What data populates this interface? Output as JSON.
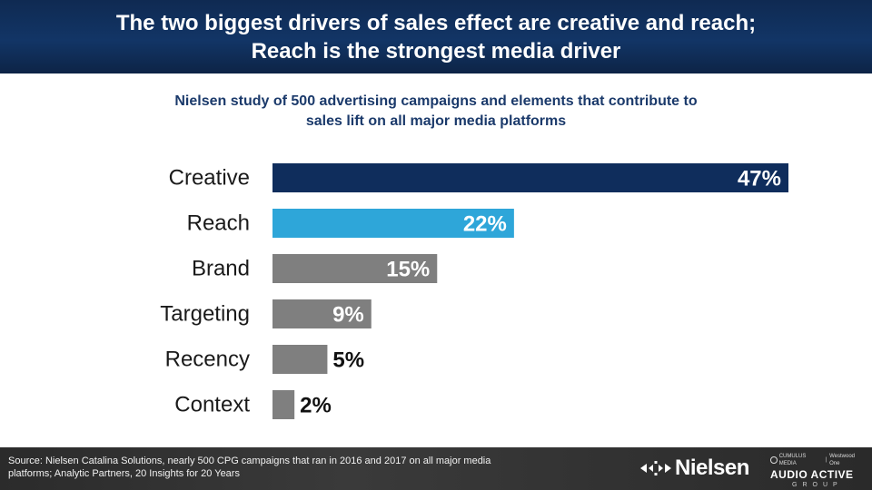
{
  "header": {
    "title_line1": "The two biggest drivers of sales effect are creative and reach;",
    "title_line2": "Reach is the strongest media driver"
  },
  "subtitle": {
    "line1": "Nielsen study of 500 advertising campaigns and elements that contribute to",
    "line2": "sales lift on all major media platforms"
  },
  "chart_data": {
    "type": "bar",
    "orientation": "horizontal",
    "categories": [
      "Creative",
      "Reach",
      "Brand",
      "Targeting",
      "Recency",
      "Context"
    ],
    "values": [
      47,
      22,
      15,
      9,
      5,
      2
    ],
    "value_labels": [
      "47%",
      "22%",
      "15%",
      "9%",
      "5%",
      "2%"
    ],
    "unit": "%",
    "xlim": [
      0,
      47
    ],
    "grid": false,
    "legend": "none",
    "colors": [
      "#0f2d5c",
      "#2ea6d9",
      "#7f7f7f",
      "#7f7f7f",
      "#7f7f7f",
      "#7f7f7f"
    ],
    "label_inside_color": "#ffffff",
    "label_outside_color": "#111111"
  },
  "footer": {
    "source_line1": "Source: Nielsen Catalina Solutions, nearly 500 CPG  campaigns that ran in 2016 and 2017 on all major media",
    "source_line2": "platforms; Analytic Partners, 20 Insights  for 20 Years",
    "nielsen_logo": "Nielsen",
    "aag_small_left": "CUMULUS MEDIA",
    "aag_small_right": "Westwood One",
    "aag_main": "AUDIO ACTIVE",
    "aag_sub": "GROUP"
  }
}
